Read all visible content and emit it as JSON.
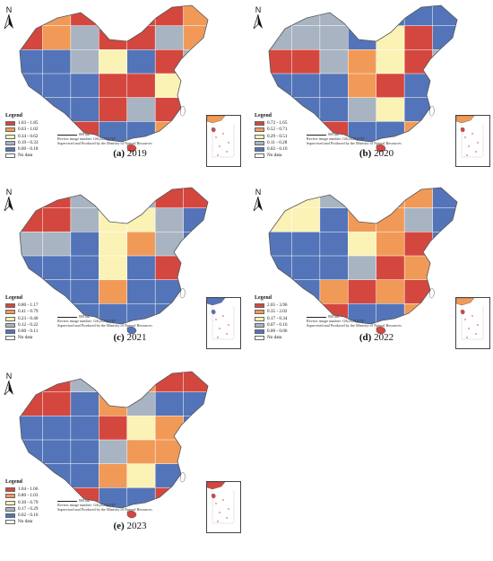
{
  "colors": {
    "class1": "#d4473f",
    "class2": "#f19a57",
    "class3": "#fbf2b6",
    "class4": "#a9b4c2",
    "class5": "#5374b8",
    "nodata": "#ffffff"
  },
  "north_label": "N",
  "legend_title": "Legend",
  "review_line1": "Review image number: GS(2023)2767",
  "review_line2": "Supervised and Produced by the Ministry of Natural Resources",
  "scale_label": "800 km",
  "no_data": "No data",
  "panels": [
    {
      "caption_letter": "(a)",
      "caption_year": "2019",
      "legend": [
        "1.03 - 1.85",
        "0.63 - 1.02",
        "0.34 - 0.62",
        "0.19 - 0.33",
        "0.00 - 0.18"
      ],
      "regions": [
        [
          "class2",
          "class2",
          "class1",
          "class1",
          "class1",
          "class1",
          "class2"
        ],
        [
          "class1",
          "class2",
          "class4",
          "class1",
          "class1",
          "class4",
          "class2"
        ],
        [
          "class5",
          "class5",
          "class4",
          "class3",
          "class5",
          "class1",
          "class4"
        ],
        [
          "class5",
          "class5",
          "class5",
          "class1",
          "class1",
          "class3",
          "class5"
        ],
        [
          "class5",
          "class5",
          "class5",
          "class1",
          "class4",
          "class1",
          "class5"
        ],
        [
          "class4",
          "class5",
          "class1",
          "class5",
          "class5",
          "class2",
          "class1"
        ]
      ]
    },
    {
      "caption_letter": "(b)",
      "caption_year": "2020",
      "legend": [
        "0.72 - 1.65",
        "0.52 - 0.71",
        "0.29 - 0.51",
        "0.11 - 0.28",
        "0.02 - 0.10"
      ],
      "regions": [
        [
          "class4",
          "class4",
          "class4",
          "class4",
          "class5",
          "class5",
          "class5"
        ],
        [
          "class4",
          "class4",
          "class4",
          "class5",
          "class3",
          "class1",
          "class5"
        ],
        [
          "class1",
          "class1",
          "class4",
          "class2",
          "class3",
          "class1",
          "class4"
        ],
        [
          "class5",
          "class5",
          "class5",
          "class2",
          "class1",
          "class5",
          "class5"
        ],
        [
          "class5",
          "class5",
          "class5",
          "class4",
          "class3",
          "class5",
          "class5"
        ],
        [
          "class4",
          "class5",
          "class1",
          "class5",
          "class5",
          "class2",
          "class5"
        ]
      ]
    },
    {
      "caption_letter": "(c)",
      "caption_year": "2021",
      "legend": [
        "0.80 - 1.17",
        "0.41 - 0.79",
        "0.23 - 0.40",
        "0.12 - 0.22",
        "0.00 - 0.11"
      ],
      "regions": [
        [
          "class1",
          "class1",
          "class4",
          "class4",
          "class4",
          "class1",
          "class1"
        ],
        [
          "class1",
          "class1",
          "class4",
          "class3",
          "class3",
          "class4",
          "class5"
        ],
        [
          "class4",
          "class4",
          "class5",
          "class3",
          "class2",
          "class4",
          "class5"
        ],
        [
          "class5",
          "class5",
          "class5",
          "class3",
          "class5",
          "class1",
          "class5"
        ],
        [
          "class5",
          "class5",
          "class5",
          "class2",
          "class5",
          "class5",
          "class5"
        ],
        [
          "class4",
          "class5",
          "class5",
          "class5",
          "class5",
          "class5",
          "class5"
        ]
      ]
    },
    {
      "caption_letter": "(d)",
      "caption_year": "2022",
      "legend": [
        "2.05 - 3.96",
        "0.35 - 2.02",
        "0.17 - 0.34",
        "0.07 - 0.16",
        "0.00 - 0.06"
      ],
      "regions": [
        [
          "class3",
          "class3",
          "class4",
          "class2",
          "class2",
          "class2",
          "class5"
        ],
        [
          "class3",
          "class3",
          "class5",
          "class2",
          "class2",
          "class4",
          "class5"
        ],
        [
          "class5",
          "class5",
          "class5",
          "class3",
          "class2",
          "class1",
          "class5"
        ],
        [
          "class5",
          "class5",
          "class5",
          "class4",
          "class1",
          "class2",
          "class2"
        ],
        [
          "class5",
          "class5",
          "class2",
          "class1",
          "class2",
          "class1",
          "class5"
        ],
        [
          "class4",
          "class5",
          "class1",
          "class5",
          "class5",
          "class2",
          "class5"
        ]
      ]
    },
    {
      "caption_letter": "(e)",
      "caption_year": "2023",
      "legend": [
        "1.04 - 1.66",
        "0.80 - 1.03",
        "0.30 - 0.79",
        "0.17 - 0.29",
        "0.02 - 0.16"
      ],
      "regions": [
        [
          "class1",
          "class1",
          "class4",
          "class2",
          "class2",
          "class1",
          "class1"
        ],
        [
          "class1",
          "class1",
          "class5",
          "class2",
          "class4",
          "class5",
          "class5"
        ],
        [
          "class5",
          "class5",
          "class5",
          "class1",
          "class3",
          "class2",
          "class5"
        ],
        [
          "class5",
          "class5",
          "class5",
          "class4",
          "class2",
          "class2",
          "class5"
        ],
        [
          "class5",
          "class5",
          "class5",
          "class2",
          "class3",
          "class5",
          "class5"
        ],
        [
          "class4",
          "class5",
          "class1",
          "class5",
          "class5",
          "class1",
          "class5"
        ]
      ]
    }
  ]
}
